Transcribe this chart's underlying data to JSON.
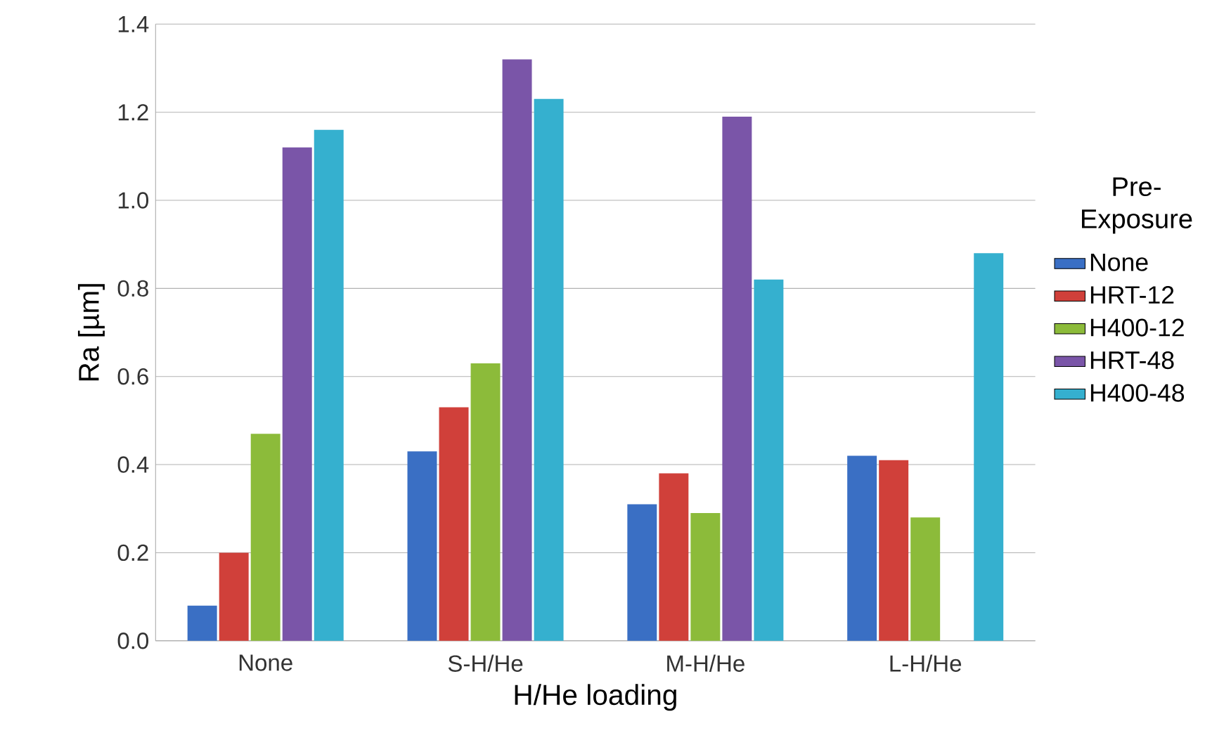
{
  "chart_data": {
    "type": "bar",
    "xlabel": "H/He loading",
    "ylabel": "Ra [µm]",
    "legend_title": "Pre-Exposure",
    "categories": [
      "None",
      "S-H/He",
      "M-H/He",
      "L-H/He"
    ],
    "series": [
      {
        "name": "None",
        "color": "#3a6fc4",
        "values": [
          0.08,
          0.43,
          0.31,
          0.42
        ]
      },
      {
        "name": "HRT-12",
        "color": "#d0403a",
        "values": [
          0.2,
          0.53,
          0.38,
          0.41
        ]
      },
      {
        "name": "H400-12",
        "color": "#8cbb3a",
        "values": [
          0.47,
          0.63,
          0.29,
          0.28
        ]
      },
      {
        "name": "HRT-48",
        "color": "#7a55a8",
        "values": [
          1.12,
          1.32,
          1.19,
          null
        ]
      },
      {
        "name": "H400-48",
        "color": "#35b0cf",
        "values": [
          1.16,
          1.23,
          0.82,
          0.88
        ]
      }
    ],
    "ylim": [
      0,
      1.4
    ],
    "yticks": [
      {
        "value": 0,
        "label": "0.0"
      },
      {
        "value": 0.2,
        "label": "0.2"
      },
      {
        "value": 0.4,
        "label": "0.4"
      },
      {
        "value": 0.6,
        "label": "0.6"
      },
      {
        "value": 0.8,
        "label": "0.8"
      },
      {
        "value": 1.0,
        "label": "1.0"
      },
      {
        "value": 1.2,
        "label": "1.2"
      },
      {
        "value": 1.4,
        "label": "1.4"
      }
    ],
    "grid": "y",
    "legend": "right"
  }
}
